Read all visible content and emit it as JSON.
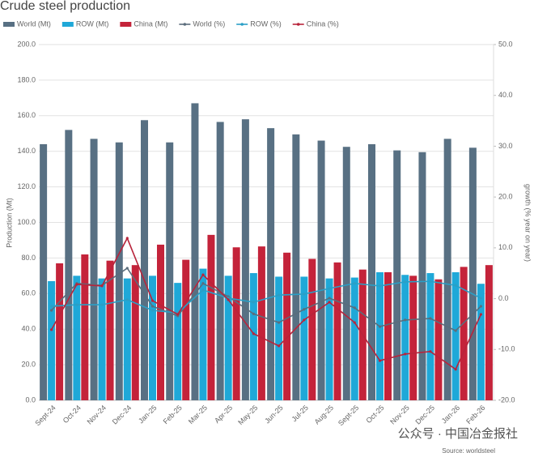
{
  "chart_data": {
    "type": "bar",
    "title": "Crude steel production",
    "ylabel": "Production (Mt)",
    "y2label": "growth (% year on year)",
    "source": "Source: worldsteel",
    "watermark": "公众号 · 中国冶金报社",
    "categories": [
      "Sept-24",
      "Oct-24",
      "Nov-24",
      "Dec-24",
      "Jan-25",
      "Feb-25",
      "Mar-25",
      "Apr-25",
      "May-25",
      "Jun-25",
      "Jul-25",
      "Aug-25",
      "Sept-25",
      "Oct-25",
      "Nov-25",
      "Dec-25",
      "Jan-26",
      "Feb-26"
    ],
    "series": [
      {
        "name": "World (Mt)",
        "color": "#587083",
        "values": [
          144,
          152,
          147,
          145,
          157.5,
          145,
          167,
          156.5,
          158,
          153,
          149.5,
          146,
          142.5,
          144,
          140.5,
          139.5,
          147,
          142
        ]
      },
      {
        "name": "ROW (Mt)",
        "color": "#1fa8d8",
        "values": [
          67,
          70,
          68.5,
          68.5,
          70,
          66,
          74,
          70,
          71.5,
          69.5,
          69.5,
          68.5,
          69,
          72,
          70.5,
          71.5,
          72,
          65.5
        ]
      },
      {
        "name": "China (Mt)",
        "color": "#c4233a",
        "values": [
          77,
          82,
          78.5,
          76,
          87.5,
          79,
          93,
          86,
          86.5,
          83,
          79.5,
          77.5,
          73.5,
          72,
          70,
          68,
          75,
          76
        ]
      },
      {
        "name": "World (%)",
        "type": "line",
        "axis": "y2",
        "color": "#5b6d7c",
        "values": [
          -2.3,
          3.0,
          2.6,
          6.0,
          -1.5,
          -3.4,
          3.0,
          0.4,
          -3.0,
          -4.7,
          -2.1,
          0.1,
          -1.8,
          -5.5,
          -4.2,
          -3.9,
          -6.3,
          -1.5
        ]
      },
      {
        "name": "ROW (%)",
        "type": "line",
        "axis": "y2",
        "color": "#2a9fc6",
        "values": [
          -1.5,
          -1.2,
          -1.2,
          -0.2,
          -2.3,
          -2.8,
          1.7,
          0.1,
          -0.7,
          0.7,
          0.9,
          2.0,
          3.0,
          2.5,
          3.3,
          3.4,
          2.6,
          0.1
        ]
      },
      {
        "name": "China (%)",
        "type": "line",
        "axis": "y2",
        "color": "#b8243b",
        "values": [
          -6.1,
          2.8,
          2.5,
          11.9,
          -0.4,
          -3.1,
          4.7,
          -0.2,
          -6.9,
          -9.3,
          -4.2,
          -0.7,
          -4.7,
          -12.2,
          -10.9,
          -10.4,
          -13.9,
          -3.1
        ]
      }
    ],
    "ylim": [
      0,
      200
    ],
    "yticks": [
      {
        "value": 0,
        "label": "0.0"
      },
      {
        "value": 20,
        "label": "20.0"
      },
      {
        "value": 40,
        "label": "40.0"
      },
      {
        "value": 60,
        "label": "60.0"
      },
      {
        "value": 80,
        "label": "80.0"
      },
      {
        "value": 100,
        "label": "100.0"
      },
      {
        "value": 120,
        "label": "120.0"
      },
      {
        "value": 140,
        "label": "140.0"
      },
      {
        "value": 160,
        "label": "160.0"
      },
      {
        "value": 180,
        "label": "180.0"
      },
      {
        "value": 200,
        "label": "200.0"
      }
    ],
    "y2lim": [
      -20,
      50
    ],
    "y2ticks": [
      {
        "value": -20,
        "label": "-20.0"
      },
      {
        "value": -10,
        "label": "-10.0"
      },
      {
        "value": 0,
        "label": "0.0"
      },
      {
        "value": 10,
        "label": "10.0"
      },
      {
        "value": 20,
        "label": "20.0"
      },
      {
        "value": 30,
        "label": "30.0"
      },
      {
        "value": 40,
        "label": "40.0"
      },
      {
        "value": 50,
        "label": "50.0"
      }
    ],
    "grid": true
  }
}
